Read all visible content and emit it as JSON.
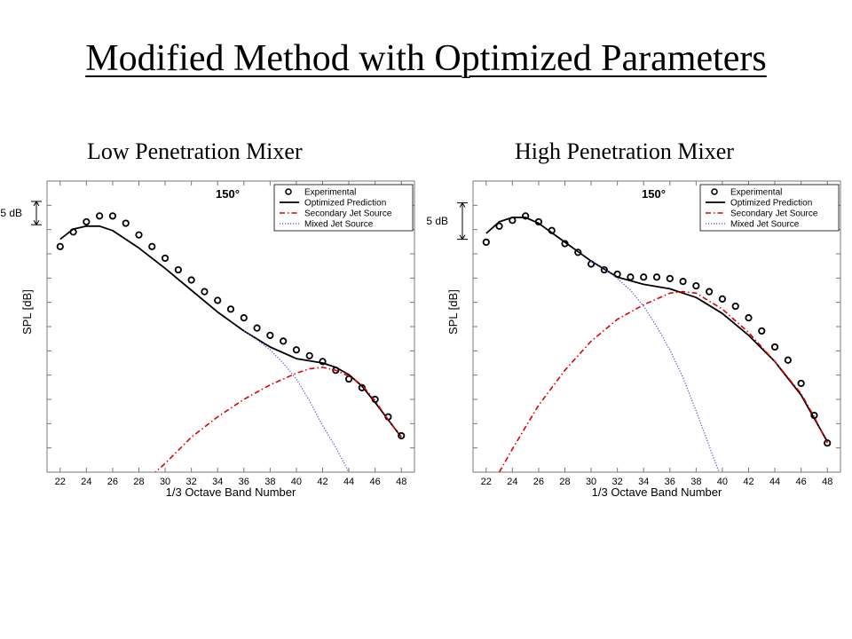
{
  "title": "Modified Method with Optimized Parameters",
  "colors": {
    "experimental": "#000000",
    "optimized": "#000000",
    "secondary": "#e00000",
    "mixed": "#4a4ae0"
  },
  "chart_data": [
    {
      "type": "line",
      "subtitle": "Low Penetration Mixer",
      "angle_label": "150°",
      "scale_label": "5 dB",
      "xlabel": "1/3 Octave Band Number",
      "ylabel": "SPL [dB]",
      "xlim": [
        21,
        49
      ],
      "ylim": [
        0,
        100
      ],
      "xticks": [
        22,
        24,
        26,
        28,
        30,
        32,
        34,
        36,
        38,
        40,
        42,
        44,
        46,
        48
      ],
      "scale_bar": {
        "y_top": 93,
        "y_bottom": 85
      },
      "legend": [
        "Experimental",
        "Optimized Prediction",
        "Secondary Jet Source",
        "Mixed Jet Source"
      ],
      "series": [
        {
          "name": "Experimental",
          "style": "markers",
          "x": [
            22,
            23,
            24,
            25,
            26,
            27,
            28,
            29,
            30,
            31,
            32,
            33,
            34,
            35,
            36,
            37,
            38,
            39,
            40,
            41,
            42,
            43,
            44,
            45,
            46,
            47,
            48
          ],
          "y": [
            77.5,
            82.5,
            86,
            88,
            88,
            85.5,
            81.5,
            77.5,
            73.5,
            69.5,
            66,
            62,
            59,
            56,
            53,
            49.5,
            47,
            45,
            42,
            40,
            38,
            35,
            32,
            29,
            25,
            19,
            12.5
          ]
        },
        {
          "name": "Optimized Prediction",
          "style": "solid",
          "x": [
            22,
            23,
            24,
            25,
            26,
            28,
            30,
            32,
            34,
            36,
            38,
            40,
            42,
            43,
            44,
            45,
            46,
            47,
            48
          ],
          "y": [
            80,
            83.5,
            84.5,
            84.5,
            83,
            77,
            70,
            62.5,
            55,
            48.5,
            43,
            39,
            37.5,
            36,
            33.5,
            29.5,
            24,
            18,
            12
          ]
        },
        {
          "name": "Secondary Jet Source",
          "style": "dashdot",
          "x": [
            29,
            30,
            32,
            34,
            36,
            38,
            40,
            41,
            42,
            43,
            44,
            45,
            46,
            47,
            48
          ],
          "y": [
            -1,
            3,
            12,
            19,
            25,
            30,
            34,
            35.5,
            36,
            35,
            33,
            30,
            24.5,
            18,
            12
          ]
        },
        {
          "name": "Mixed Jet Source",
          "style": "dotted",
          "x": [
            36,
            37,
            38,
            39,
            40,
            41,
            42,
            43,
            44,
            45
          ],
          "y": [
            48.5,
            45.5,
            42,
            37.5,
            32,
            24.5,
            16,
            8.5,
            0,
            -8
          ]
        }
      ]
    },
    {
      "type": "line",
      "subtitle": "High Penetration Mixer",
      "angle_label": "150°",
      "scale_label": "5 dB",
      "xlabel": "1/3 Octave Band Number",
      "ylabel": "SPL [dB]",
      "xlim": [
        21,
        49
      ],
      "ylim": [
        0,
        100
      ],
      "xticks": [
        22,
        24,
        26,
        28,
        30,
        32,
        34,
        36,
        38,
        40,
        42,
        44,
        46,
        48
      ],
      "scale_bar": {
        "y_top": 92.5,
        "y_bottom": 80
      },
      "legend": [
        "Experimental",
        "Optimized Prediction",
        "Secondary Jet Source",
        "Mixed Jet Source"
      ],
      "series": [
        {
          "name": "Experimental",
          "style": "markers",
          "x": [
            22,
            23,
            24,
            25,
            26,
            27,
            28,
            29,
            30,
            31,
            32,
            33,
            34,
            35,
            36,
            37,
            38,
            39,
            40,
            41,
            42,
            43,
            44,
            45,
            46,
            47,
            48
          ],
          "y": [
            79,
            84.5,
            86.5,
            88,
            86,
            83,
            78.5,
            75.5,
            71.5,
            69.5,
            68,
            67,
            67,
            67,
            66.5,
            65.5,
            64,
            62,
            59.5,
            57,
            53,
            48.5,
            43,
            38.5,
            30.5,
            19.5,
            10
          ]
        },
        {
          "name": "Optimized Prediction",
          "style": "solid",
          "x": [
            22,
            23,
            24,
            25,
            26,
            28,
            30,
            32,
            34,
            36,
            38,
            40,
            42,
            44,
            46,
            47,
            48
          ],
          "y": [
            82,
            86,
            87.5,
            87.5,
            85.5,
            79,
            72.5,
            67,
            64.5,
            63,
            60,
            54.5,
            47,
            38,
            26.5,
            18.5,
            10.5
          ]
        },
        {
          "name": "Secondary Jet Source",
          "style": "dashdot",
          "x": [
            23,
            24,
            26,
            28,
            30,
            32,
            34,
            36,
            37,
            38,
            40,
            42,
            44,
            46,
            47,
            48
          ],
          "y": [
            0,
            8,
            23,
            35,
            45,
            52.5,
            57.5,
            61.5,
            62,
            61.5,
            56,
            48,
            38,
            27,
            19,
            10
          ]
        },
        {
          "name": "Mixed Jet Source",
          "style": "dotted",
          "x": [
            30,
            31,
            32,
            33,
            34,
            35,
            36,
            37,
            38,
            39,
            40
          ],
          "y": [
            72.5,
            70,
            66.5,
            62.5,
            57,
            50,
            42,
            32.5,
            21,
            9,
            -3
          ]
        }
      ]
    }
  ]
}
